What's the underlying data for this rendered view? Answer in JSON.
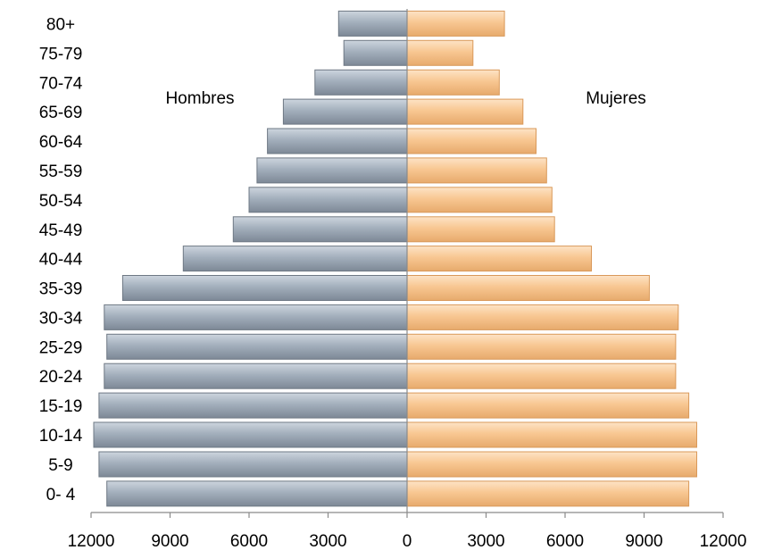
{
  "chart_data": {
    "type": "bar",
    "orientation": "horizontal",
    "layout": "population-pyramid",
    "categories": [
      "80+",
      "75-79",
      "70-74",
      "65-69",
      "60-64",
      "55-59",
      "50-54",
      "45-49",
      "40-44",
      "35-39",
      "30-34",
      "25-29",
      "20-24",
      "15-19",
      "10-14",
      "5-9",
      "0- 4"
    ],
    "series": [
      {
        "name": "Hombres",
        "side": "left",
        "color": "#9aa6b3",
        "values": [
          2600,
          2400,
          3500,
          4700,
          5300,
          5700,
          6000,
          6600,
          8500,
          10800,
          11500,
          11400,
          11500,
          11700,
          11900,
          11700,
          11400
        ]
      },
      {
        "name": "Mujeres",
        "side": "right",
        "color": "#f8c792",
        "values": [
          3700,
          2500,
          3500,
          4400,
          4900,
          5300,
          5500,
          5600,
          7000,
          9200,
          10300,
          10200,
          10200,
          10700,
          11000,
          11000,
          10700
        ]
      }
    ],
    "xlim": [
      -12000,
      12000
    ],
    "xticks": [
      -12000,
      -9000,
      -6000,
      -3000,
      0,
      3000,
      6000,
      9000,
      12000
    ],
    "xtick_labels": [
      "12000",
      "9000",
      "6000",
      "3000",
      "0",
      "3000",
      "6000",
      "9000",
      "12000"
    ],
    "title": "",
    "xlabel": "",
    "ylabel": "",
    "grid": false,
    "legend": "none"
  }
}
